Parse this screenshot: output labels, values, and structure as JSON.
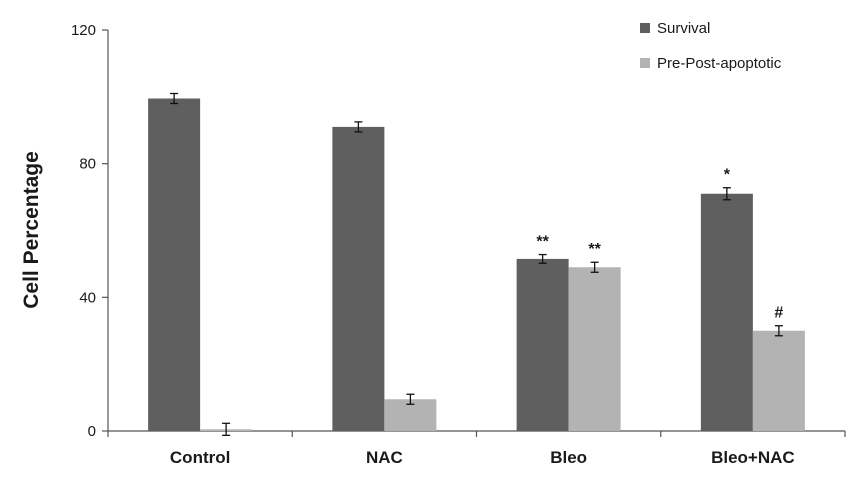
{
  "chart_data": {
    "type": "bar",
    "categories": [
      "Control",
      "NAC",
      "Bleo",
      "Bleo+NAC"
    ],
    "series": [
      {
        "name": "Survival",
        "color": "#5f5f5f",
        "values": [
          99.5,
          91,
          51.5,
          71
        ],
        "errors": [
          1.5,
          1.5,
          1.3,
          1.8
        ],
        "annotations": [
          "",
          "",
          "**",
          "*"
        ]
      },
      {
        "name": "Pre-Post-apoptotic",
        "color": "#b3b3b3",
        "values": [
          0.5,
          9.5,
          49,
          30
        ],
        "errors": [
          1.8,
          1.5,
          1.5,
          1.5
        ],
        "annotations": [
          "",
          "",
          "**",
          "#"
        ]
      }
    ],
    "xlabel": "",
    "ylabel": "Cell Percentage",
    "ylim": [
      0,
      120
    ],
    "yticks": [
      0,
      40,
      80,
      120
    ],
    "grid": false,
    "legend_position": "top-right"
  }
}
